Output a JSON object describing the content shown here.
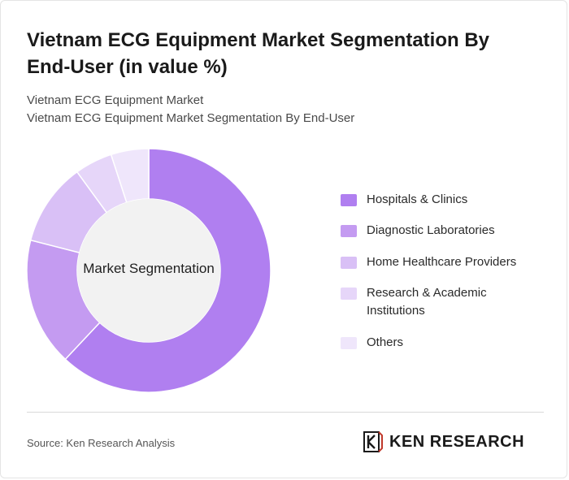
{
  "header": {
    "title": "Vietnam ECG Equipment Market Segmentation By End-User (in value %)",
    "subtitle_1": "Vietnam ECG Equipment Market",
    "subtitle_2": "Vietnam ECG Equipment Market Segmentation By End-User"
  },
  "chart_data": {
    "type": "pie",
    "variant": "donut",
    "center_label": "Market Segmentation",
    "categories": [
      "Hospitals & Clinics",
      "Diagnostic Laboratories",
      "Home Healthcare Providers",
      "Research & Academic Institutions",
      "Others"
    ],
    "values": [
      62,
      17,
      11,
      5,
      5
    ],
    "unit": "%",
    "colors": [
      "#b07ff0",
      "#c49bf1",
      "#d9c0f6",
      "#e6d6f9",
      "#efe6fb"
    ],
    "legend_position": "right"
  },
  "footer": {
    "source": "Source: Ken Research Analysis",
    "brand_name": "KEN RESEARCH",
    "brand_icon": "ken-research-logo-icon"
  }
}
